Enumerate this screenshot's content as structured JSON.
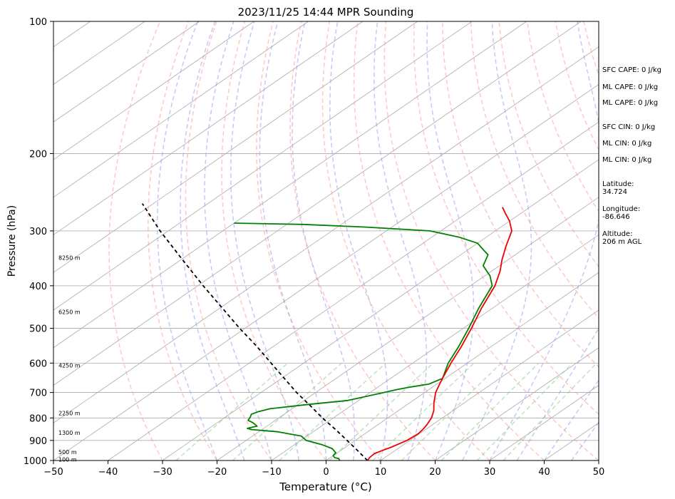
{
  "chart_data": {
    "type": "line",
    "title": "2023/11/25 14:44 MPR Sounding",
    "xlabel": "Temperature (°C)",
    "ylabel": "Pressure (hPa)",
    "xlim": [
      -50,
      50
    ],
    "ylim": [
      1000,
      100
    ],
    "y_scale": "log",
    "skew": true,
    "x_ticks": [
      "−50",
      "−40",
      "−30",
      "−20",
      "−10",
      "0",
      "10",
      "20",
      "30",
      "40",
      "50"
    ],
    "y_ticks": [
      "100",
      "200",
      "300",
      "400",
      "500",
      "600",
      "700",
      "800",
      "900",
      "1000"
    ],
    "grid": true,
    "colors": {
      "temperature": "#ee0000",
      "dewpoint": "#008000",
      "parcel": "#000000",
      "dry_adiabat": "#ff9999",
      "moist_adiabat": "#9999ee",
      "mixing_ratio": "#88cc88",
      "grid": "#aaaaaa"
    },
    "series": [
      {
        "role": "temperature",
        "points": [
          [
            1000,
            7.6
          ],
          [
            985,
            7.2
          ],
          [
            965,
            7.0
          ],
          [
            950,
            7.6
          ],
          [
            930,
            8.5
          ],
          [
            900,
            9.5
          ],
          [
            870,
            9.8
          ],
          [
            850,
            9.5
          ],
          [
            830,
            9.0
          ],
          [
            800,
            8.0
          ],
          [
            770,
            6.5
          ],
          [
            740,
            4.5
          ],
          [
            700,
            2.0
          ],
          [
            670,
            0.5
          ],
          [
            650,
            -0.5
          ],
          [
            600,
            -3.0
          ],
          [
            550,
            -5.5
          ],
          [
            500,
            -8.5
          ],
          [
            450,
            -12.0
          ],
          [
            400,
            -15.5
          ],
          [
            370,
            -18.5
          ],
          [
            350,
            -21.0
          ],
          [
            325,
            -24.0
          ],
          [
            300,
            -27.0
          ],
          [
            285,
            -30.0
          ],
          [
            275,
            -32.5
          ],
          [
            265,
            -35.0
          ]
        ]
      },
      {
        "role": "dewpoint",
        "points": [
          [
            1000,
            2.5
          ],
          [
            990,
            1.8
          ],
          [
            985,
            0.8
          ],
          [
            975,
            0.0
          ],
          [
            960,
            -0.3
          ],
          [
            940,
            -2.0
          ],
          [
            920,
            -5.0
          ],
          [
            900,
            -9.0
          ],
          [
            880,
            -11.0
          ],
          [
            860,
            -16.5
          ],
          [
            850,
            -22.0
          ],
          [
            845,
            -23.0
          ],
          [
            835,
            -21.8
          ],
          [
            820,
            -23.5
          ],
          [
            810,
            -25.0
          ],
          [
            795,
            -25.5
          ],
          [
            785,
            -26.0
          ],
          [
            775,
            -25.5
          ],
          [
            762,
            -24.0
          ],
          [
            745,
            -18.0
          ],
          [
            730,
            -12.0
          ],
          [
            710,
            -9.0
          ],
          [
            700,
            -7.5
          ],
          [
            690,
            -6.0
          ],
          [
            680,
            -4.0
          ],
          [
            670,
            -1.5
          ],
          [
            650,
            -0.5
          ],
          [
            600,
            -3.5
          ],
          [
            550,
            -6.0
          ],
          [
            500,
            -9.0
          ],
          [
            450,
            -12.5
          ],
          [
            400,
            -16.0
          ],
          [
            380,
            -19.0
          ],
          [
            360,
            -23.0
          ],
          [
            340,
            -25.0
          ],
          [
            330,
            -27.5
          ],
          [
            320,
            -30.0
          ],
          [
            310,
            -35.0
          ],
          [
            300,
            -42.0
          ],
          [
            294,
            -55.0
          ],
          [
            290,
            -67.0
          ],
          [
            288,
            -80.0
          ]
        ]
      },
      {
        "role": "parcel",
        "points": [
          [
            1000,
            7.6
          ],
          [
            950,
            3.2
          ],
          [
            900,
            -1.5
          ],
          [
            850,
            -6.5
          ],
          [
            800,
            -12.0
          ],
          [
            750,
            -17.5
          ],
          [
            700,
            -23.5
          ],
          [
            650,
            -29.5
          ],
          [
            600,
            -36.0
          ],
          [
            550,
            -43.0
          ],
          [
            500,
            -51.0
          ],
          [
            450,
            -59.5
          ],
          [
            400,
            -69.0
          ],
          [
            350,
            -79.5
          ],
          [
            300,
            -91.5
          ],
          [
            260,
            -102.0
          ]
        ]
      }
    ],
    "height_labels": [
      {
        "pressure": 995,
        "label": "100 m"
      },
      {
        "pressure": 957,
        "label": "500 m"
      },
      {
        "pressure": 865,
        "label": "1300 m"
      },
      {
        "pressure": 780,
        "label": "2250 m"
      },
      {
        "pressure": 607,
        "label": "4250 m"
      },
      {
        "pressure": 459,
        "label": "6250 m"
      },
      {
        "pressure": 345,
        "label": "8250 m"
      }
    ]
  },
  "side_panel": {
    "sfc_cape": "SFC CAPE: 0 J/kg",
    "ml_cape_1": "ML CAPE: 0 J/kg",
    "ml_cape_2": "ML CAPE: 0 J/kg",
    "sfc_cin": "SFC CIN: 0 J/kg",
    "ml_cin_1": "ML CIN: 0 J/kg",
    "ml_cin_2": "ML CIN: 0 J/kg",
    "latitude_label": "Latitude:",
    "latitude_value": "34.724",
    "longitude_label": "Longitude:",
    "longitude_value": "-86.646",
    "altitude_label": "Altitude:",
    "altitude_value": "206 m AGL"
  }
}
